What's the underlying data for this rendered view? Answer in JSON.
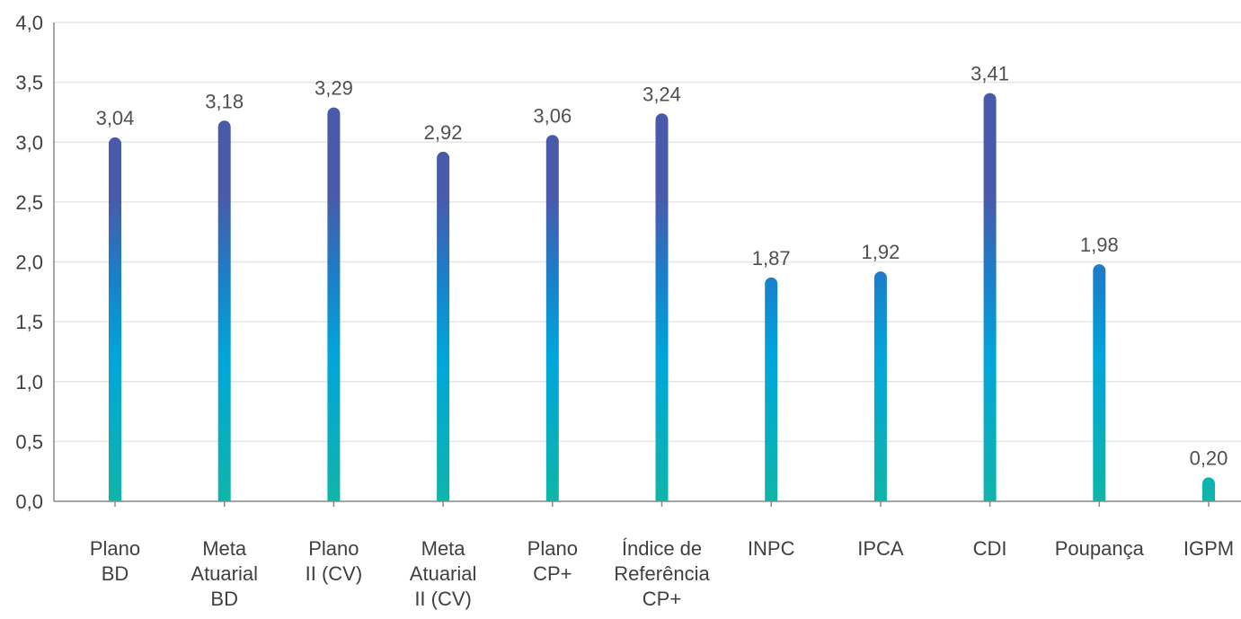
{
  "chart_data": {
    "type": "bar",
    "title": "",
    "xlabel": "",
    "ylabel": "",
    "ylim": [
      0,
      4.0
    ],
    "y_ticks": [
      "0,0",
      "0,5",
      "1,0",
      "1,5",
      "2,0",
      "2,5",
      "3,0",
      "3,5",
      "4,0"
    ],
    "y_tick_values": [
      0,
      0.5,
      1.0,
      1.5,
      2.0,
      2.5,
      3.0,
      3.5,
      4.0
    ],
    "grid": true,
    "legend": "none",
    "categories": [
      [
        "Plano",
        "BD"
      ],
      [
        "Meta",
        "Atuarial",
        "BD"
      ],
      [
        "Plano",
        "II (CV)"
      ],
      [
        "Meta",
        "Atuarial",
        "II (CV)"
      ],
      [
        "Plano",
        "CP+"
      ],
      [
        "Índice de",
        "Referência",
        "CP+"
      ],
      [
        "INPC"
      ],
      [
        "IPCA"
      ],
      [
        "CDI"
      ],
      [
        "Poupança"
      ],
      [
        "IGPM"
      ]
    ],
    "values": [
      3.04,
      3.18,
      3.29,
      2.92,
      3.06,
      3.24,
      1.87,
      1.92,
      3.41,
      1.98,
      0.2
    ],
    "value_labels": [
      "3,04",
      "3,18",
      "3,29",
      "2,92",
      "3,06",
      "3,24",
      "1,87",
      "1,92",
      "3,41",
      "1,98",
      "0,20"
    ],
    "colors": {
      "bar_bottom": "#0fb5a8",
      "bar_mid": "#00a6da",
      "bar_upper": "#1a7fc9",
      "bar_top": "#4a5aaa",
      "grid": "#e6e6e6",
      "axis": "#888888",
      "text": "#404040",
      "label_text": "#505050"
    }
  }
}
